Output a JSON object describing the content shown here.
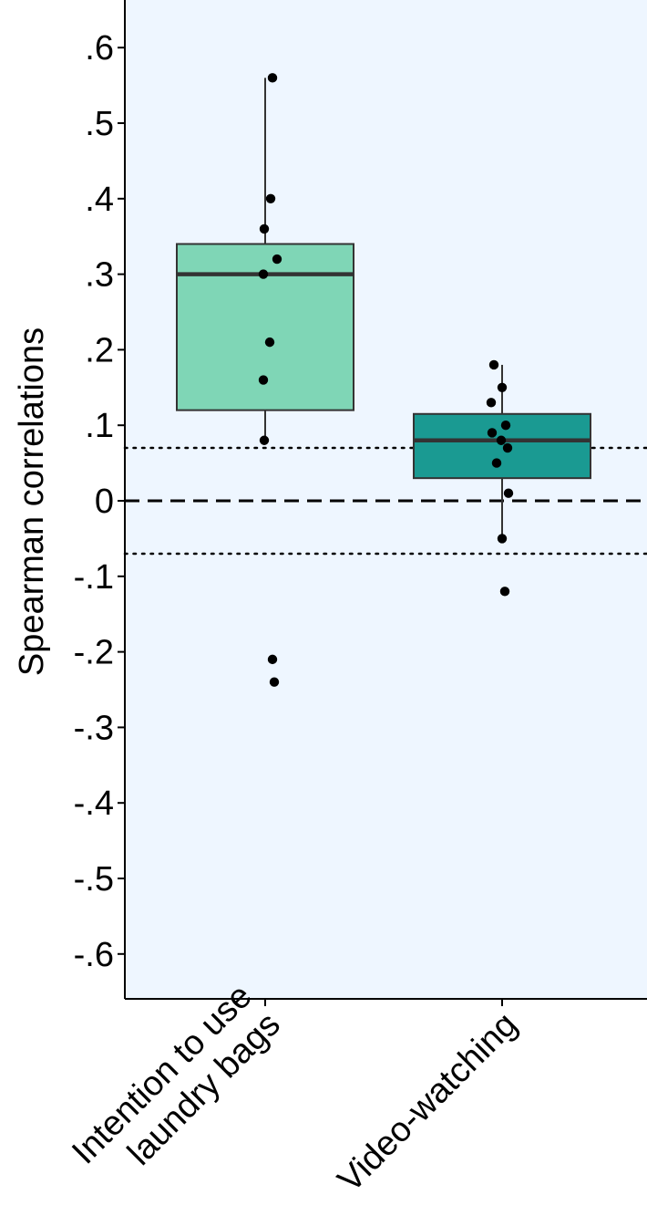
{
  "chart_data": {
    "type": "box",
    "title": "",
    "xlabel": "",
    "ylabel": "Spearman correlations",
    "ylim": [
      -0.66,
      0.66
    ],
    "yticks": [
      {
        "value": 0.6,
        "label": ".6"
      },
      {
        "value": 0.5,
        "label": ".5"
      },
      {
        "value": 0.4,
        "label": ".4"
      },
      {
        "value": 0.3,
        "label": ".3"
      },
      {
        "value": 0.2,
        "label": ".2"
      },
      {
        "value": 0.1,
        "label": ".1"
      },
      {
        "value": 0.0,
        "label": "0"
      },
      {
        "value": -0.1,
        "label": "-.1"
      },
      {
        "value": -0.2,
        "label": "-.2"
      },
      {
        "value": -0.3,
        "label": "-.3"
      },
      {
        "value": -0.4,
        "label": "-.4"
      },
      {
        "value": -0.5,
        "label": "-.5"
      },
      {
        "value": -0.6,
        "label": "-.6"
      }
    ],
    "categories": [
      {
        "label_lines": [
          "Intention to use",
          "laundry bags"
        ],
        "box_color": "#7fd6b6",
        "q1": 0.12,
        "median": 0.3,
        "q3": 0.34,
        "whisker_low": 0.08,
        "whisker_high": 0.56,
        "points": [
          0.56,
          0.4,
          0.36,
          0.32,
          0.3,
          0.21,
          0.16,
          0.08,
          -0.21,
          -0.24
        ]
      },
      {
        "label_lines": [
          "Video-watching"
        ],
        "box_color": "#1a9a92",
        "q1": 0.03,
        "median": 0.08,
        "q3": 0.115,
        "whisker_low": -0.05,
        "whisker_high": 0.18,
        "points": [
          0.18,
          0.15,
          0.13,
          0.1,
          0.09,
          0.08,
          0.07,
          0.05,
          0.01,
          -0.05,
          -0.12
        ]
      }
    ],
    "reference_lines": [
      {
        "value": 0.0,
        "style": "dashed"
      },
      {
        "value": 0.07,
        "style": "dotted"
      },
      {
        "value": -0.07,
        "style": "dotted"
      }
    ],
    "panel_background": "#eef6ff",
    "grid": false,
    "legend": "none"
  }
}
